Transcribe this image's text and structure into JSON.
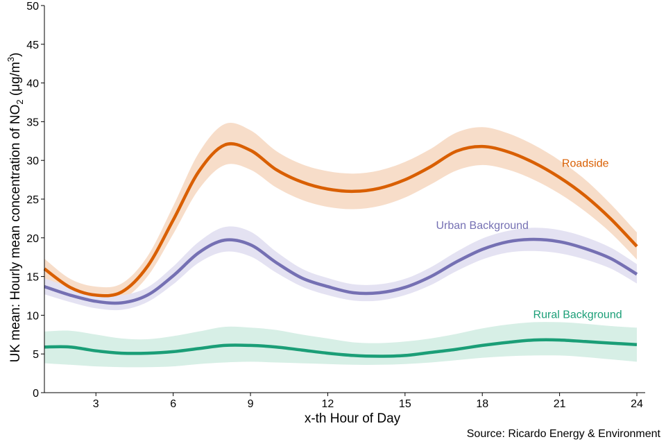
{
  "chart_data": {
    "type": "line",
    "title": "",
    "xlabel": "x-th Hour of Day",
    "ylabel": {
      "prefix": "UK mean: Hourly mean concentration of NO",
      "subscript": "2",
      "unit_open": " (μg/m",
      "superscript": "3",
      "unit_close": ")"
    },
    "xlim": [
      1,
      24
    ],
    "ylim": [
      0,
      50
    ],
    "xticks": [
      3,
      6,
      9,
      12,
      15,
      18,
      21,
      24
    ],
    "yticks": [
      0,
      5,
      10,
      15,
      20,
      25,
      30,
      35,
      40,
      45,
      50
    ],
    "x": [
      1,
      2,
      3,
      4,
      5,
      6,
      7,
      8,
      9,
      10,
      11,
      12,
      13,
      14,
      15,
      16,
      17,
      18,
      19,
      20,
      21,
      22,
      23,
      24
    ],
    "series": [
      {
        "name": "Roadside",
        "color": "#d95f02",
        "band_color": "#f7ddc9",
        "values": [
          16.0,
          13.6,
          12.6,
          13.0,
          16.3,
          22.3,
          28.6,
          32.0,
          31.3,
          28.8,
          27.2,
          26.3,
          26.0,
          26.4,
          27.5,
          29.2,
          31.2,
          31.8,
          31.1,
          29.7,
          27.8,
          25.4,
          22.4,
          18.9
        ],
        "lower": [
          14.8,
          12.6,
          11.6,
          12.0,
          15.0,
          20.5,
          26.3,
          29.4,
          28.8,
          26.5,
          24.9,
          24.0,
          23.7,
          24.1,
          25.2,
          26.9,
          28.7,
          29.4,
          28.8,
          27.5,
          25.7,
          23.4,
          20.6,
          17.2
        ],
        "upper": [
          17.3,
          14.7,
          13.7,
          14.1,
          17.6,
          24.1,
          31.0,
          34.7,
          33.9,
          31.2,
          29.5,
          28.6,
          28.3,
          28.7,
          29.8,
          31.5,
          33.6,
          34.3,
          33.5,
          32.0,
          30.0,
          27.5,
          24.3,
          20.7
        ]
      },
      {
        "name": "Urban Background",
        "color": "#7570b3",
        "band_color": "#e4e2f2",
        "values": [
          13.7,
          12.6,
          11.8,
          11.6,
          12.6,
          15.1,
          18.1,
          19.7,
          19.1,
          16.8,
          14.8,
          13.7,
          12.9,
          12.9,
          13.6,
          15.0,
          16.9,
          18.5,
          19.5,
          19.8,
          19.5,
          18.6,
          17.3,
          15.3
        ],
        "lower": [
          12.7,
          11.7,
          10.9,
          10.7,
          11.7,
          14.0,
          16.8,
          18.2,
          17.6,
          15.5,
          13.7,
          12.6,
          11.9,
          11.9,
          12.6,
          13.9,
          15.7,
          17.2,
          18.1,
          18.3,
          18.0,
          17.2,
          16.0,
          14.1
        ],
        "upper": [
          14.8,
          13.6,
          12.8,
          12.6,
          13.6,
          16.3,
          19.5,
          21.4,
          20.8,
          18.2,
          16.0,
          14.8,
          14.0,
          14.0,
          14.7,
          16.2,
          18.2,
          19.9,
          20.9,
          21.3,
          21.0,
          20.1,
          18.7,
          16.6
        ]
      },
      {
        "name": "Rural Background",
        "color": "#1b9e77",
        "band_color": "#d7efe6",
        "values": [
          5.9,
          5.9,
          5.4,
          5.1,
          5.1,
          5.3,
          5.7,
          6.1,
          6.1,
          5.9,
          5.5,
          5.1,
          4.8,
          4.7,
          4.8,
          5.2,
          5.6,
          6.1,
          6.5,
          6.8,
          6.8,
          6.6,
          6.4,
          6.2
        ],
        "lower": [
          3.8,
          3.6,
          3.4,
          3.3,
          3.3,
          3.4,
          3.7,
          3.9,
          4.0,
          3.9,
          3.8,
          3.7,
          3.6,
          3.6,
          3.7,
          3.9,
          4.2,
          4.5,
          4.7,
          4.8,
          4.8,
          4.6,
          4.3,
          4.0
        ],
        "upper": [
          7.9,
          8.0,
          7.5,
          7.0,
          6.9,
          7.3,
          7.9,
          8.5,
          8.4,
          8.1,
          7.5,
          7.0,
          6.5,
          6.4,
          6.6,
          7.0,
          7.6,
          8.3,
          8.8,
          9.1,
          9.1,
          8.9,
          8.6,
          8.4
        ]
      }
    ],
    "annotations": [
      {
        "text": "Roadside",
        "x": 22.0,
        "y": 29.6,
        "color": "#d95f02"
      },
      {
        "text": "Urban Background",
        "x": 18.0,
        "y": 21.6,
        "color": "#7570b3"
      },
      {
        "text": "Rural Background",
        "x": 21.7,
        "y": 10.1,
        "color": "#1b9e77"
      }
    ]
  },
  "source_text": "Source: Ricardo Energy & Environment"
}
